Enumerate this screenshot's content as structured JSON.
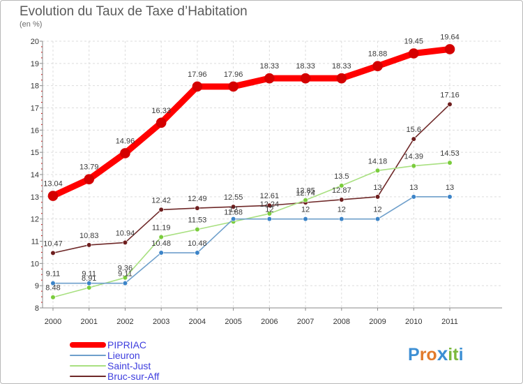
{
  "title": "Evolution du Taux de Taxe d’Habitation",
  "subtitle": "(en %)",
  "logo": {
    "text": "Proxiti",
    "letters": [
      "P",
      "r",
      "o",
      "x",
      "i",
      "t",
      "i"
    ],
    "colors": [
      "#3d8fd4",
      "#e27a2b",
      "#e27a2b",
      "#3d8fd4",
      "#7ab83c",
      "#7ab83c",
      "#3d8fd4"
    ]
  },
  "chart_data": {
    "type": "line",
    "title": "Evolution du Taux de Taxe d’Habitation",
    "ylabel": "(en %)",
    "xlabel": "",
    "x": [
      "2000",
      "2001",
      "2002",
      "2003",
      "2004",
      "2005",
      "2006",
      "2007",
      "2008",
      "2009",
      "2010",
      "2011"
    ],
    "ylim": [
      8,
      20
    ],
    "yticks": [
      8,
      9,
      10,
      11,
      12,
      13,
      14,
      15,
      16,
      17,
      18,
      19,
      20
    ],
    "grid": true,
    "legend_position": "bottom-left",
    "series": [
      {
        "name": "PIPRIAC",
        "color": "#ff0000",
        "marker": "#d40000",
        "values": [
          13.04,
          13.79,
          14.96,
          16.33,
          17.96,
          17.96,
          18.33,
          18.33,
          18.33,
          18.88,
          19.45,
          19.64
        ],
        "labels": [
          "13.04",
          "13.79",
          "14.96",
          "16.33",
          "17.96",
          "17.96",
          "18.33",
          "18.33",
          "18.33",
          "18.88",
          "19.45",
          "19.64"
        ]
      },
      {
        "name": "Lieuron",
        "color": "#6e9fcb",
        "marker": "#3c84c8",
        "values": [
          9.11,
          9.11,
          9.11,
          10.48,
          10.48,
          12,
          12,
          12,
          12,
          12,
          13,
          13
        ],
        "labels": [
          "9.11",
          "9.11",
          "9.11",
          "10.48",
          "10.48",
          "12",
          "12",
          "12",
          "12",
          "12",
          "13",
          "13"
        ]
      },
      {
        "name": "Saint-Just",
        "color": "#a8e080",
        "marker": "#7acc3c",
        "values": [
          8.48,
          8.91,
          9.36,
          11.19,
          11.53,
          11.88,
          12.24,
          12.85,
          13.5,
          14.18,
          14.39,
          14.53
        ],
        "labels": [
          "8.48",
          "8.91",
          "9.36",
          "11.19",
          "11.53",
          "11.88",
          "12.24",
          "12.85",
          "13.5",
          "14.18",
          "14.39",
          "14.53"
        ]
      },
      {
        "name": "Bruc-sur-Aff",
        "color": "#6e2828",
        "marker": "#6e1e1e",
        "values": [
          10.47,
          10.83,
          10.94,
          12.42,
          12.49,
          12.55,
          12.61,
          12.74,
          12.87,
          13,
          15.6,
          17.16
        ],
        "labels": [
          "10.47",
          "10.83",
          "10.94",
          "12.42",
          "12.49",
          "12.55",
          "12.61",
          "12.74",
          "12.87",
          "13",
          "15.6",
          "17.16"
        ]
      }
    ]
  }
}
